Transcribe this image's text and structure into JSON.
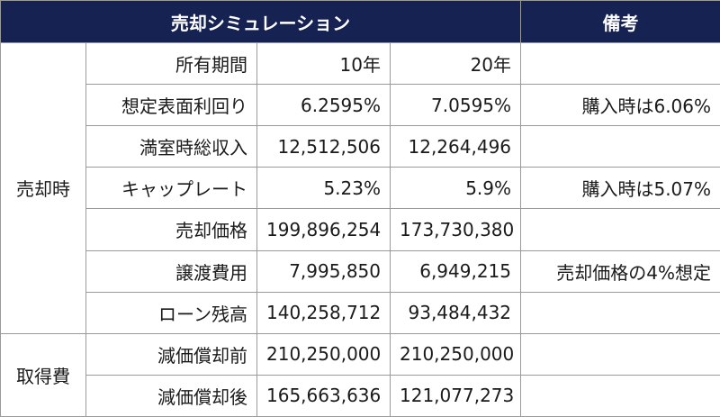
{
  "header": {
    "title": "売却シミュレーション",
    "notes_title": "備考"
  },
  "sale": {
    "group": "売却時",
    "rows": [
      {
        "label": "所有期間",
        "y10": "10年",
        "y20": "20年",
        "note": ""
      },
      {
        "label": "想定表面利回り",
        "y10": "6.2595%",
        "y20": "7.0595%",
        "note": "購入時は6.06%"
      },
      {
        "label": "満室時総収入",
        "y10": "12,512,506",
        "y20": "12,264,496",
        "note": ""
      },
      {
        "label": "キャップレート",
        "y10": "5.23%",
        "y20": "5.9%",
        "note": "購入時は5.07%"
      },
      {
        "label": "売却価格",
        "y10": "199,896,254",
        "y20": "173,730,380",
        "note": ""
      },
      {
        "label": "譲渡費用",
        "y10": "7,995,850",
        "y20": "6,949,215",
        "note": "売却価格の4%想定"
      },
      {
        "label": "ローン残高",
        "y10": "140,258,712",
        "y20": "93,484,432",
        "note": ""
      }
    ]
  },
  "acquisition": {
    "group": "取得費",
    "rows": [
      {
        "label": "減価償却前",
        "y10": "210,250,000",
        "y20": "210,250,000",
        "note": ""
      },
      {
        "label": "減価償却後",
        "y10": "165,663,636",
        "y20": "121,077,273",
        "note": ""
      }
    ]
  }
}
